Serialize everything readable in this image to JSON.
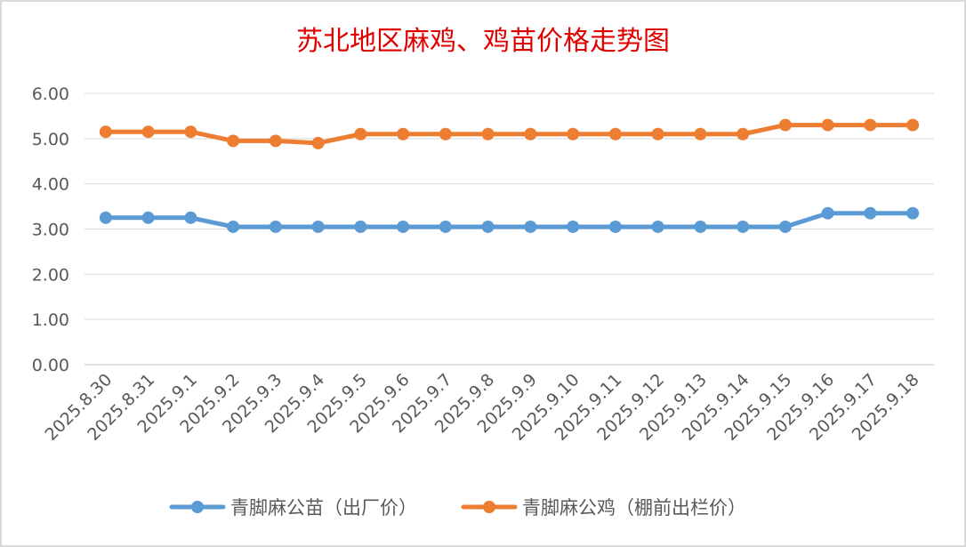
{
  "chart_data": {
    "type": "line",
    "title": "苏北地区麻鸡、鸡苗价格走势图",
    "categories": [
      "2025.8.30",
      "2025.8.31",
      "2025.9.1",
      "2025.9.2",
      "2025.9.3",
      "2025.9.4",
      "2025.9.5",
      "2025.9.6",
      "2025.9.7",
      "2025.9.8",
      "2025.9.9",
      "2025.9.10",
      "2025.9.11",
      "2025.9.12",
      "2025.9.13",
      "2025.9.14",
      "2025.9.15",
      "2025.9.16",
      "2025.9.17",
      "2025.9.18"
    ],
    "series": [
      {
        "name": "青脚麻公苗（出厂价）",
        "color": "#5b9bd5",
        "values": [
          3.25,
          3.25,
          3.25,
          3.05,
          3.05,
          3.05,
          3.05,
          3.05,
          3.05,
          3.05,
          3.05,
          3.05,
          3.05,
          3.05,
          3.05,
          3.05,
          3.05,
          3.35,
          3.35,
          3.35
        ]
      },
      {
        "name": "青脚麻公鸡（棚前出栏价）",
        "color": "#ed7d31",
        "values": [
          5.15,
          5.15,
          5.15,
          4.95,
          4.95,
          4.9,
          5.1,
          5.1,
          5.1,
          5.1,
          5.1,
          5.1,
          5.1,
          5.1,
          5.1,
          5.1,
          5.3,
          5.3,
          5.3,
          5.3
        ]
      }
    ],
    "yticks": [
      "0.00",
      "1.00",
      "2.00",
      "3.00",
      "4.00",
      "5.00",
      "6.00"
    ],
    "ylim": [
      0,
      6
    ],
    "grid": true,
    "legend": "bottom"
  }
}
